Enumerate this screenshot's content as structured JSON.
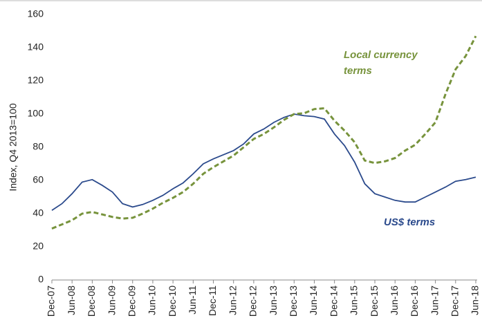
{
  "chart_data": {
    "type": "line",
    "y_label": "Index, Q4 2013=100",
    "categories": [
      "Dec-07",
      null,
      "Jun-08",
      null,
      "Dec-08",
      null,
      "Jun-09",
      null,
      "Dec-09",
      null,
      "Jun-10",
      null,
      "Dec-10",
      null,
      "Jun-11",
      null,
      "Dec-11",
      null,
      "Jun-12",
      null,
      "Dec-12",
      null,
      "Jun-13",
      null,
      "Dec-13",
      null,
      "Jun-14",
      null,
      "Dec-14",
      null,
      "Jun-15",
      null,
      "Dec-15",
      null,
      "Jun-16",
      null,
      "Dec-16",
      null,
      "Jun-17",
      null,
      "Dec-17",
      null,
      "Jun-18"
    ],
    "series": [
      {
        "name": "US$ terms",
        "color": "#2b4a8c",
        "dashed": false,
        "values": [
          42,
          46,
          52,
          59,
          60.5,
          57,
          53,
          46,
          44,
          45.5,
          48,
          51,
          55,
          58.5,
          64,
          70,
          73,
          75.5,
          78,
          82,
          88,
          91,
          95,
          98,
          100,
          99,
          98.5,
          97,
          88,
          81,
          71,
          58,
          52,
          50,
          48,
          47,
          47,
          50,
          53,
          56,
          59.5,
          60.5,
          62
        ]
      },
      {
        "name": "Local currency terms",
        "color": "#77933c",
        "dashed": true,
        "values": [
          31,
          33.5,
          36,
          40,
          41,
          39.5,
          38,
          37,
          37.5,
          40,
          43,
          46.5,
          49.5,
          53,
          58,
          64,
          68,
          71.5,
          75,
          80,
          85,
          88,
          92,
          96.5,
          100,
          100.5,
          103,
          103.5,
          96,
          90,
          83,
          72,
          70.5,
          71.5,
          73.5,
          78,
          81.5,
          88,
          95,
          112,
          127,
          135,
          147
        ]
      }
    ],
    "annotations": [
      {
        "lines": [
          "Local currency",
          "terms"
        ],
        "color": "#77933c"
      },
      {
        "lines": [
          "US$ terms"
        ],
        "color": "#2b4a8c"
      }
    ],
    "ylim": [
      0,
      160
    ],
    "yticks": [
      0,
      20,
      40,
      60,
      80,
      100,
      120,
      140,
      160
    ],
    "grid": false
  }
}
